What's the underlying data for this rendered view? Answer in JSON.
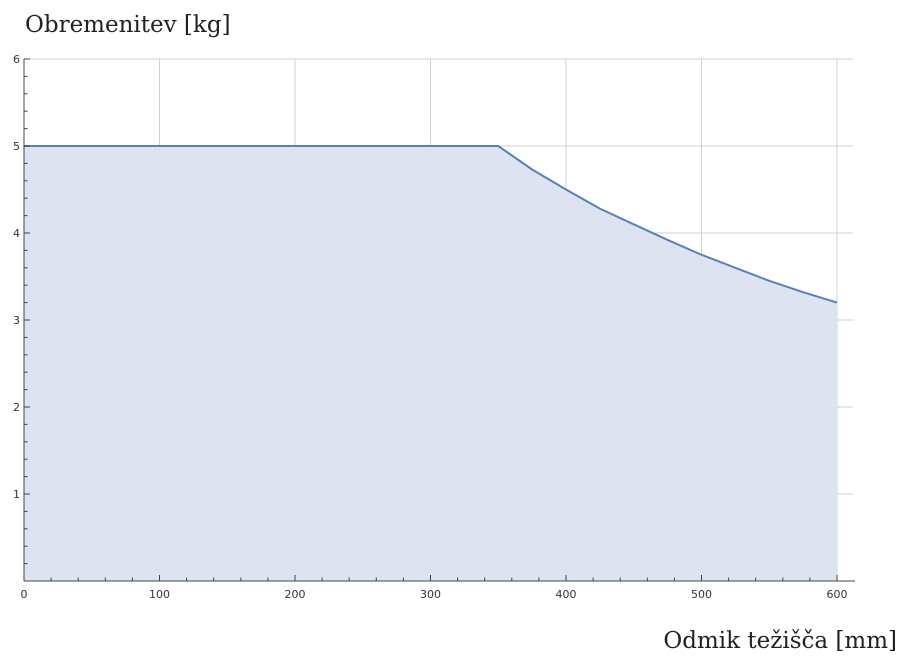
{
  "chart_data": {
    "type": "area",
    "title": "",
    "ylabel": "Obremenitev [kg]",
    "xlabel": "Odmik težišča [mm]",
    "xlim": [
      0,
      600
    ],
    "ylim": [
      0,
      6
    ],
    "x_ticks": [
      "0",
      "100",
      "200",
      "300",
      "400",
      "500",
      "600"
    ],
    "y_ticks": [
      "1",
      "2",
      "3",
      "4",
      "5",
      "6"
    ],
    "grid": true,
    "series": [
      {
        "x": [
          0,
          350,
          375,
          400,
          425,
          450,
          475,
          500,
          525,
          550,
          575,
          600
        ],
        "y": [
          5,
          5,
          4.73,
          4.5,
          4.28,
          4.1,
          3.92,
          3.75,
          3.6,
          3.45,
          3.32,
          3.2
        ]
      }
    ],
    "colors": {
      "line": "#5b7fb8",
      "fill": "#dbe2ef",
      "grid": "#cfcfcf"
    }
  }
}
